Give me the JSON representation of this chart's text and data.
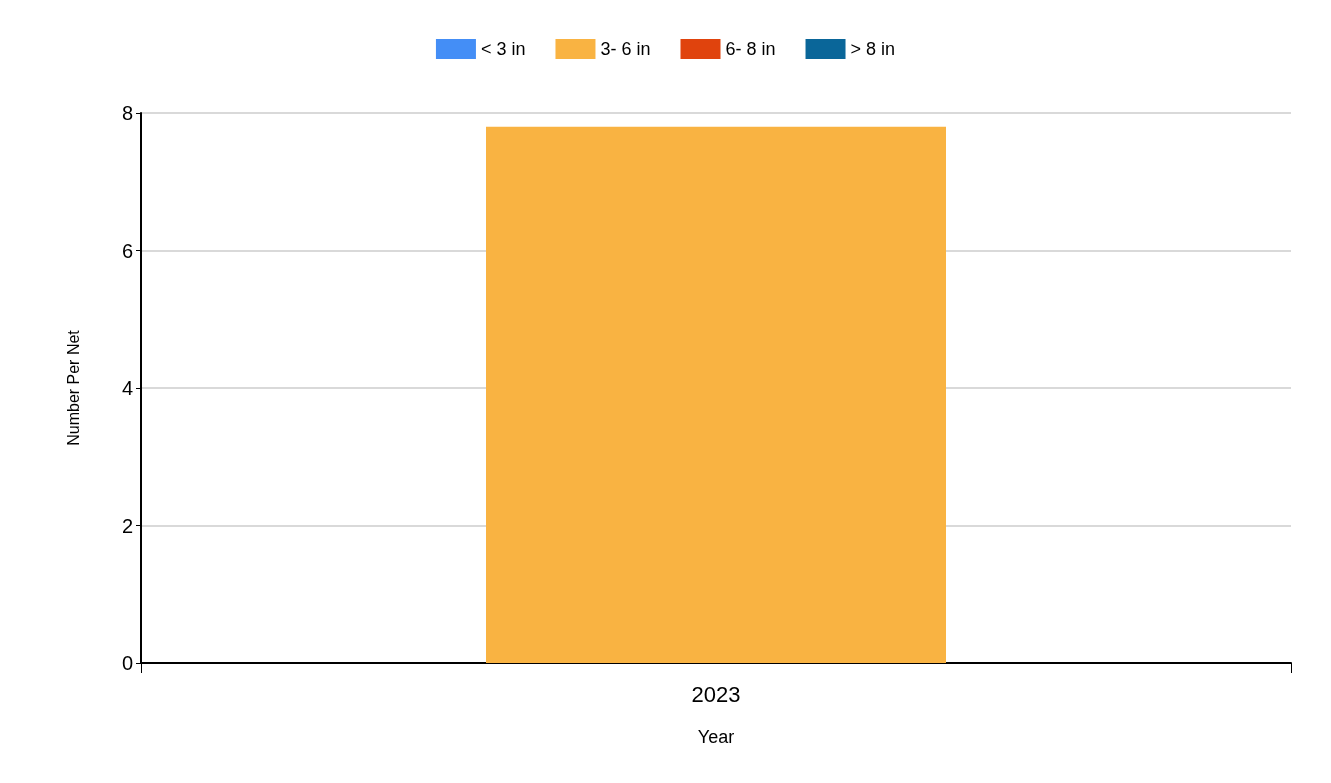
{
  "chart_data": {
    "type": "bar",
    "stacked": true,
    "xlabel": "Year",
    "ylabel": "Number Per Net",
    "categories": [
      "2023"
    ],
    "series": [
      {
        "name": "< 3 in",
        "color": "#448ef6",
        "values": [
          0
        ]
      },
      {
        "name": "3- 6 in",
        "color": "#f9b342",
        "values": [
          7.8
        ]
      },
      {
        "name": "6- 8 in",
        "color": "#e0430d",
        "values": [
          0
        ]
      },
      {
        "name": "> 8 in",
        "color": "#0a6699",
        "values": [
          0
        ]
      }
    ],
    "ylim": [
      0,
      8
    ],
    "yticks": [
      0,
      2,
      4,
      6,
      8
    ],
    "grid": "y",
    "legend": "top"
  }
}
